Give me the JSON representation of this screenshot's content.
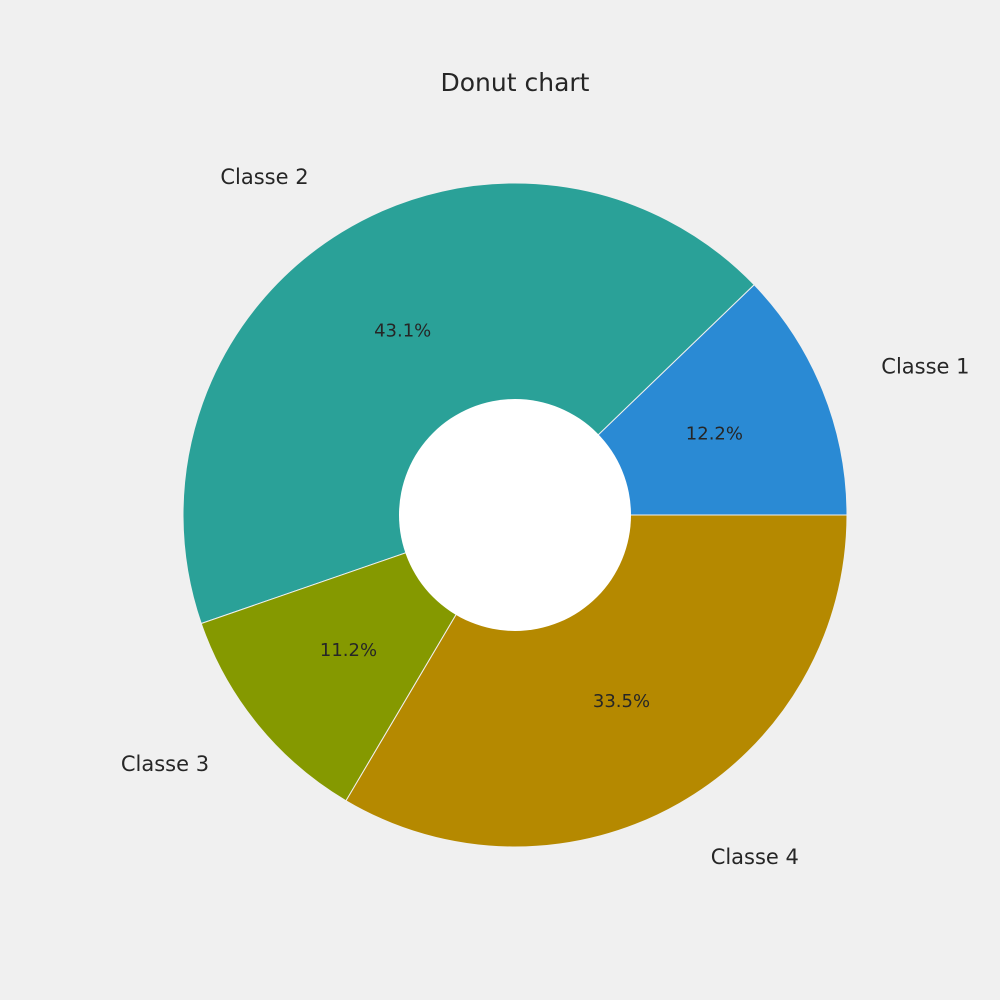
{
  "chart_data": {
    "type": "pie",
    "variant": "donut",
    "title": "Donut chart",
    "categories": [
      "Classe 1",
      "Classe 2",
      "Classe 3",
      "Classe 4"
    ],
    "values": [
      12.2,
      43.1,
      11.2,
      33.5
    ],
    "value_labels": [
      "12.2%",
      "43.1%",
      "11.2%",
      "33.5%"
    ],
    "colors": [
      "#2a8ad4",
      "#2aa198",
      "#859900",
      "#b58900"
    ],
    "hole_color": "#ffffff",
    "background": "#f0f0f0",
    "legend": "none",
    "grid": false
  }
}
